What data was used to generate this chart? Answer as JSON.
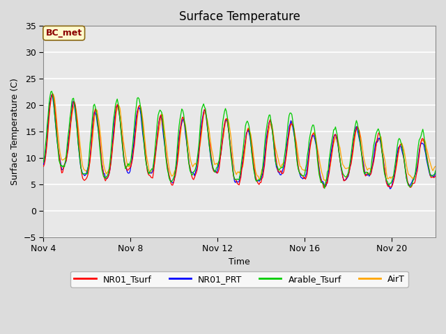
{
  "title": "Surface Temperature",
  "xlabel": "Time",
  "ylabel": "Surface Temperature (C)",
  "ylim": [
    -5,
    35
  ],
  "xlim_days": [
    4,
    22
  ],
  "annotation_text": "BC_met",
  "annotation_color": "#8B0000",
  "annotation_bg": "#FFFACD",
  "series_colors": {
    "NR01_Tsurf": "#FF0000",
    "NR01_PRT": "#0000FF",
    "Arable_Tsurf": "#00CC00",
    "AirT": "#FFA500"
  },
  "legend_labels": [
    "NR01_Tsurf",
    "NR01_PRT",
    "Arable_Tsurf",
    "AirT"
  ],
  "bg_color": "#DCDCDC",
  "plot_bg_color": "#E8E8E8",
  "grid_color": "#FFFFFF",
  "tick_label_fontsize": 9,
  "title_fontsize": 12,
  "axis_label_fontsize": 9,
  "start_day": 4,
  "n_days": 18,
  "yticks": [
    -5,
    0,
    5,
    10,
    15,
    20,
    25,
    30,
    35
  ],
  "xtick_positions": [
    4,
    8,
    12,
    16,
    20
  ],
  "xtick_labels": [
    "Nov 4",
    "Nov 8",
    "Nov 12",
    "Nov 16",
    "Nov 20"
  ]
}
